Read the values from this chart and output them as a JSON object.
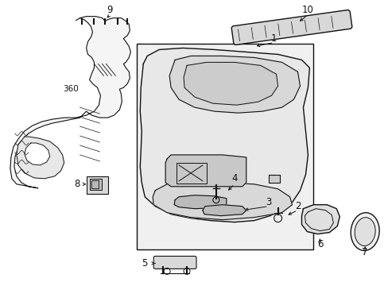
{
  "bg_color": "#ffffff",
  "line_color": "#111111",
  "fig_width": 4.89,
  "fig_height": 3.6,
  "dpi": 100
}
